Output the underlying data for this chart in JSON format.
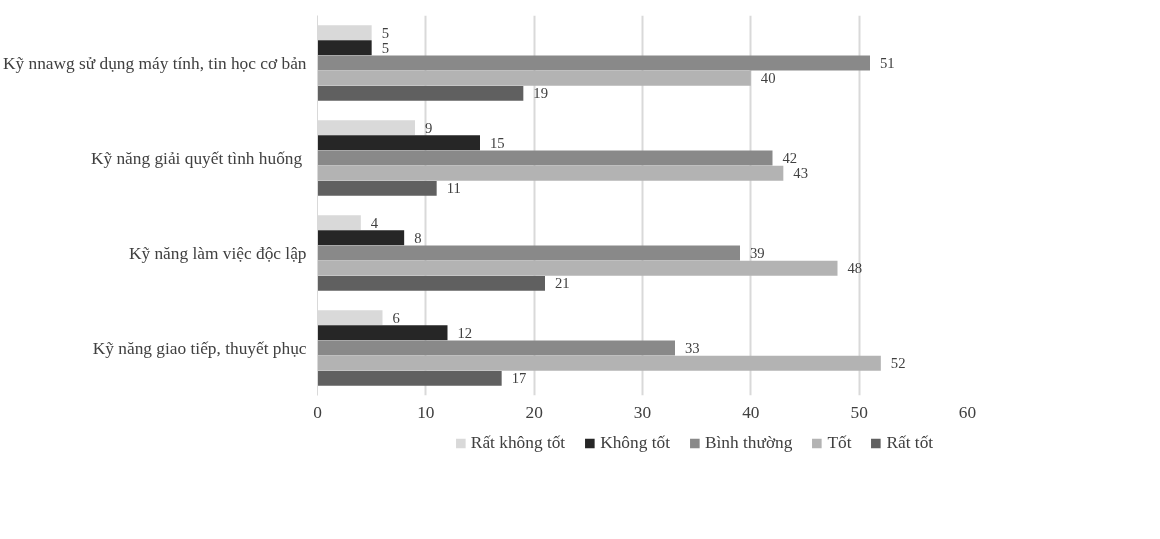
{
  "chart_data": {
    "type": "bar",
    "orientation": "horizontal",
    "categories": [
      "Kỹ nnawg sử dụng máy tính, tin học cơ bản",
      "Kỹ năng giải  quyết tình huống",
      "Kỹ năng làm việc độc lập",
      "Kỹ năng giao tiếp, thuyết phục"
    ],
    "series": [
      {
        "name": "Rất không tốt",
        "color": "#d9d9d9",
        "values": [
          5,
          9,
          4,
          6
        ]
      },
      {
        "name": "Không tốt",
        "color": "#262626",
        "values": [
          5,
          15,
          8,
          12
        ]
      },
      {
        "name": "Bình thường",
        "color": "#898989",
        "values": [
          51,
          42,
          39,
          33
        ]
      },
      {
        "name": "Tốt",
        "color": "#b3b3b3",
        "values": [
          40,
          43,
          48,
          52
        ]
      },
      {
        "name": "Rất tốt",
        "color": "#606060",
        "values": [
          19,
          11,
          21,
          17
        ]
      }
    ],
    "xlim": [
      0,
      60
    ],
    "xticks": [
      0,
      10,
      20,
      30,
      40,
      50,
      60
    ],
    "grid": "x",
    "legend": "bottom",
    "data_labels": true
  }
}
